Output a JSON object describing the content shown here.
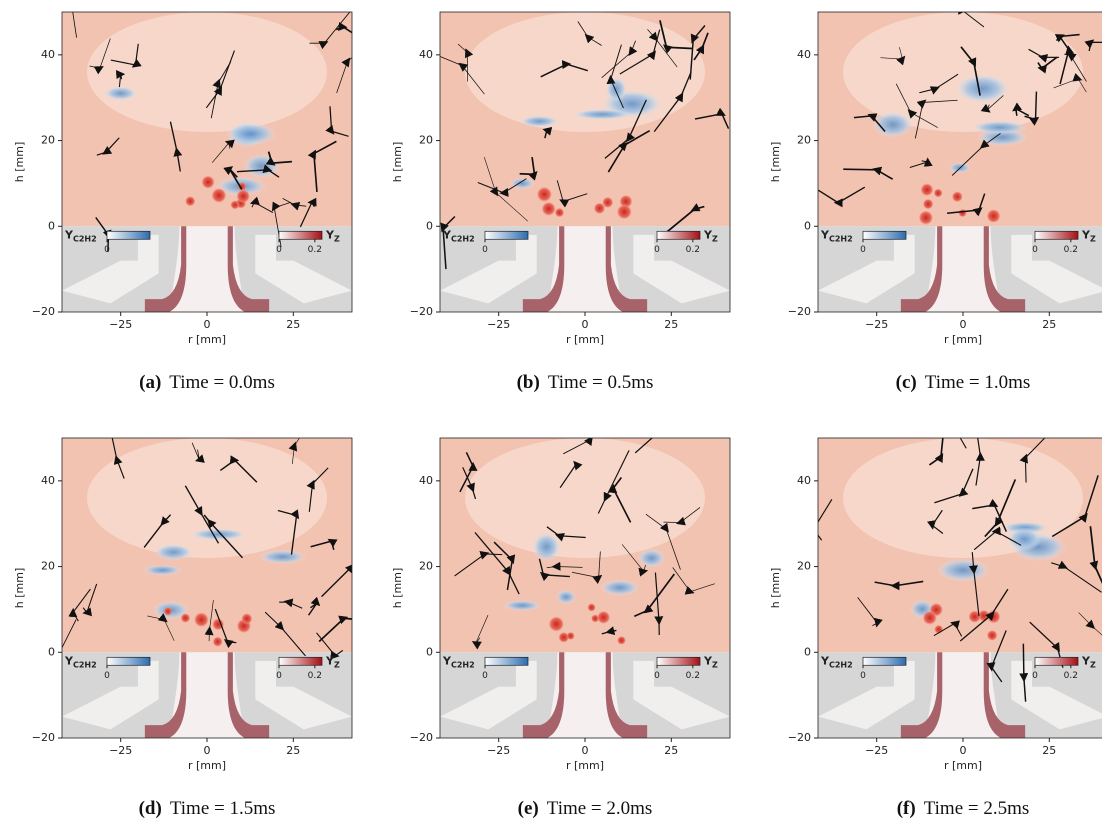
{
  "figure": {
    "panels": [
      {
        "label": "(a)",
        "caption": "Time = 0.0ms",
        "x_label": "r [mm]",
        "y_label": "h [mm]",
        "xlim": [
          -42,
          42
        ],
        "ylim": [
          -20,
          50
        ],
        "xticks": [
          {
            "value": -25,
            "label": "−25"
          },
          0,
          25
        ],
        "yticks": [
          {
            "value": -20,
            "label": "−20"
          },
          0,
          20,
          40
        ],
        "colorbar_c2h2": {
          "symbol": "Y",
          "subscript": "C2H2",
          "lim": [
            0,
            0.1
          ],
          "ticks": [
            0
          ]
        },
        "colorbar_z": {
          "symbol": "Y",
          "subscript": "Z",
          "lim": [
            0,
            0.24
          ],
          "ticks": [
            0,
            0.2
          ]
        }
      },
      {
        "label": "(b)",
        "caption": "Time = 0.5ms",
        "x_label": "r [mm]",
        "y_label": "h [mm]",
        "xlim": [
          -42,
          42
        ],
        "ylim": [
          -20,
          50
        ],
        "xticks": [
          {
            "value": -25,
            "label": "−25"
          },
          0,
          25
        ],
        "yticks": [
          {
            "value": -20,
            "label": "−20"
          },
          0,
          20,
          40
        ],
        "colorbar_c2h2": {
          "symbol": "Y",
          "subscript": "C2H2",
          "lim": [
            0,
            0.1
          ],
          "ticks": [
            0
          ]
        },
        "colorbar_z": {
          "symbol": "Y",
          "subscript": "Z",
          "lim": [
            0,
            0.24
          ],
          "ticks": [
            0,
            0.2
          ]
        }
      },
      {
        "label": "(c)",
        "caption": "Time = 1.0ms",
        "x_label": "r [mm]",
        "y_label": "h [mm]",
        "xlim": [
          -42,
          42
        ],
        "ylim": [
          -20,
          50
        ],
        "xticks": [
          {
            "value": -25,
            "label": "−25"
          },
          0,
          25
        ],
        "yticks": [
          {
            "value": -20,
            "label": "−20"
          },
          0,
          20,
          40
        ],
        "colorbar_c2h2": {
          "symbol": "Y",
          "subscript": "C2H2",
          "lim": [
            0,
            0.1
          ],
          "ticks": [
            0
          ]
        },
        "colorbar_z": {
          "symbol": "Y",
          "subscript": "Z",
          "lim": [
            0,
            0.24
          ],
          "ticks": [
            0,
            0.2
          ]
        }
      },
      {
        "label": "(d)",
        "caption": "Time = 1.5ms",
        "x_label": "r [mm]",
        "y_label": "h [mm]",
        "xlim": [
          -42,
          42
        ],
        "ylim": [
          -20,
          50
        ],
        "xticks": [
          {
            "value": -25,
            "label": "−25"
          },
          0,
          25
        ],
        "yticks": [
          {
            "value": -20,
            "label": "−20"
          },
          0,
          20,
          40
        ],
        "colorbar_c2h2": {
          "symbol": "Y",
          "subscript": "C2H2",
          "lim": [
            0,
            0.1
          ],
          "ticks": [
            0
          ]
        },
        "colorbar_z": {
          "symbol": "Y",
          "subscript": "Z",
          "lim": [
            0,
            0.24
          ],
          "ticks": [
            0,
            0.2
          ]
        }
      },
      {
        "label": "(e)",
        "caption": "Time = 2.0ms",
        "x_label": "r [mm]",
        "y_label": "h [mm]",
        "xlim": [
          -42,
          42
        ],
        "ylim": [
          -20,
          50
        ],
        "xticks": [
          {
            "value": -25,
            "label": "−25"
          },
          0,
          25
        ],
        "yticks": [
          {
            "value": -20,
            "label": "−20"
          },
          0,
          20,
          40
        ],
        "colorbar_c2h2": {
          "symbol": "Y",
          "subscript": "C2H2",
          "lim": [
            0,
            0.1
          ],
          "ticks": [
            0
          ]
        },
        "colorbar_z": {
          "symbol": "Y",
          "subscript": "Z",
          "lim": [
            0,
            0.24
          ],
          "ticks": [
            0,
            0.2
          ]
        }
      },
      {
        "label": "(f)",
        "caption": "Time = 2.5ms",
        "x_label": "r [mm]",
        "y_label": "h [mm]",
        "xlim": [
          -42,
          42
        ],
        "ylim": [
          -20,
          50
        ],
        "xticks": [
          {
            "value": -25,
            "label": "−25"
          },
          0,
          25
        ],
        "yticks": [
          {
            "value": -20,
            "label": "−20"
          },
          0,
          20,
          40
        ],
        "colorbar_c2h2": {
          "symbol": "Y",
          "subscript": "C2H2",
          "lim": [
            0,
            0.1
          ],
          "ticks": [
            0
          ]
        },
        "colorbar_z": {
          "symbol": "Y",
          "subscript": "Z",
          "lim": [
            0,
            0.24
          ],
          "ticks": [
            0,
            0.2
          ]
        }
      }
    ]
  }
}
